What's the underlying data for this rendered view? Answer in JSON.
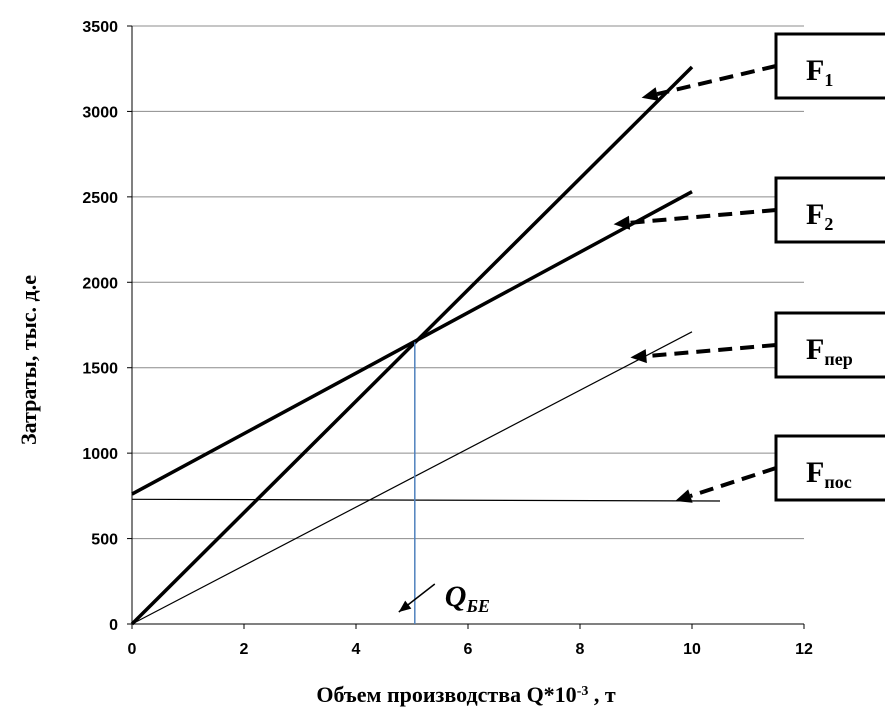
{
  "chart_data": {
    "type": "line",
    "title": "",
    "xlabel": "Объем производства Q*10",
    "xlabel_exponent": "-3",
    "xlabel_suffix": " , т",
    "ylabel": "Затраты, тыс. д.е",
    "xlim": [
      0,
      12
    ],
    "ylim": [
      0,
      3500
    ],
    "x_ticks": [
      "0",
      "2",
      "4",
      "6",
      "8",
      "10",
      "12"
    ],
    "y_ticks": [
      "0",
      "500",
      "1000",
      "1500",
      "2000",
      "2500",
      "3000",
      "3500"
    ],
    "grid": "horizontal",
    "series": [
      {
        "name": "F1",
        "x": [
          0,
          10
        ],
        "y": [
          0,
          3260
        ],
        "stroke": "thick"
      },
      {
        "name": "F2",
        "x": [
          0,
          10
        ],
        "y": [
          760,
          2530
        ],
        "stroke": "thick"
      },
      {
        "name": "Fпер",
        "x": [
          0,
          10
        ],
        "y": [
          0,
          1710
        ],
        "stroke": "thin"
      },
      {
        "name": "Fпос",
        "x": [
          0,
          10.5
        ],
        "y": [
          730,
          720
        ],
        "stroke": "thin"
      }
    ],
    "break_even": {
      "x": 5.05,
      "y": 1650,
      "label_main": "Q",
      "label_sub": "БЕ"
    },
    "callouts": [
      {
        "main": "F",
        "sub": "1",
        "target_x": 9.1,
        "target_y": 3080
      },
      {
        "main": "F",
        "sub": "2",
        "target_x": 8.6,
        "target_y": 2340
      },
      {
        "main": "F",
        "sub": "пер",
        "target_x": 8.9,
        "target_y": 1560
      },
      {
        "main": "F",
        "sub": "пос",
        "target_x": 9.7,
        "target_y": 720
      }
    ]
  },
  "colors": {
    "axis": "#000000",
    "gridline": "#8c8c8c",
    "series": "#000000",
    "break_even_line": "#4f81bd"
  }
}
